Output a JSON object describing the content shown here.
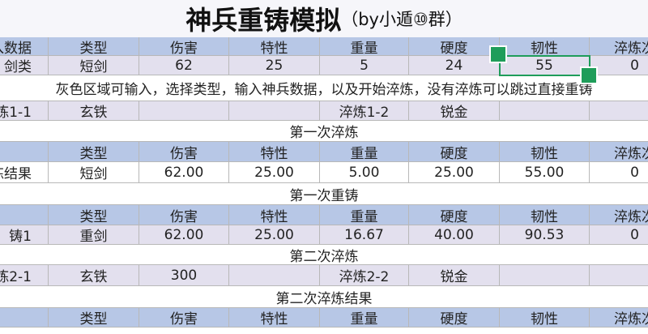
{
  "title": "神兵重铸模拟",
  "title_suffix": "（by小遁⑩群）",
  "rows": [
    {
      "kind": "header",
      "cells": [
        "入数据",
        "类型",
        "伤害",
        "特性",
        "重量",
        "硬度",
        "韧性",
        "淬炼次"
      ]
    },
    {
      "kind": "input",
      "cells": [
        "剑类",
        "短剑",
        "62",
        "25",
        "5",
        "24",
        "55",
        "0"
      ]
    },
    {
      "kind": "note",
      "text": "灰色区域可输入，选择类型，输入神兵数据，以及开始淬炼，没有淬炼可以跳过直接重铸"
    },
    {
      "kind": "input",
      "cells": [
        "炼1-1",
        "玄铁",
        null,
        null,
        "淬炼1-2",
        "锐金",
        null,
        null
      ]
    },
    {
      "kind": "banner",
      "text": "第一次淬炼"
    },
    {
      "kind": "header",
      "cells": [
        null,
        "类型",
        "伤害",
        "特性",
        "重量",
        "硬度",
        "韧性",
        "淬炼次"
      ]
    },
    {
      "kind": "plain",
      "cells": [
        "炼结果",
        "短剑",
        "62.00",
        "25.00",
        "5.00",
        "25.00",
        "55.00",
        "0"
      ]
    },
    {
      "kind": "banner",
      "text": "第一次重铸"
    },
    {
      "kind": "header",
      "cells": [
        null,
        "类型",
        "伤害",
        "特性",
        "重量",
        "硬度",
        "韧性",
        "淬炼次"
      ]
    },
    {
      "kind": "input",
      "cells": [
        "铸1",
        "重剑",
        "62.00",
        "25.00",
        "16.67",
        "40.00",
        "90.53",
        "0"
      ]
    },
    {
      "kind": "banner",
      "text": "第二次淬炼"
    },
    {
      "kind": "input",
      "cells": [
        "炼2-1",
        "玄铁",
        "300",
        null,
        "淬炼2-2",
        "锐金",
        null,
        null
      ]
    },
    {
      "kind": "banner",
      "text": "第二次淬炼结果"
    },
    {
      "kind": "header",
      "cells": [
        null,
        "类型",
        "伤害",
        "特性",
        "重量",
        "硬度",
        "韧性",
        "淬炼次"
      ]
    }
  ]
}
